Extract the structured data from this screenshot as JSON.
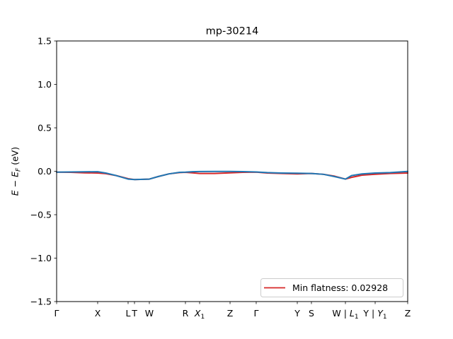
{
  "chart_data": {
    "type": "line",
    "title": "mp-30214",
    "xlabel": "",
    "ylabel": "E − E_F (eV)",
    "ylim": [
      -1.5,
      1.5
    ],
    "yticks": [
      1.5,
      1.0,
      0.5,
      0.0,
      -0.5,
      -1.0,
      -1.5
    ],
    "ytick_labels": [
      "1.5",
      "1.0",
      "0.5",
      "0.0",
      "−0.5",
      "−1.0",
      "−1.5"
    ],
    "xlim": [
      0,
      1
    ],
    "grid": false,
    "legend_position": "lower-right",
    "legend": [
      {
        "label": "Min flatness: 0.02928",
        "color": "#d62728"
      }
    ],
    "kpoints": [
      {
        "label": "Γ",
        "pos": 0.0
      },
      {
        "label": "X",
        "pos": 0.1169
      },
      {
        "label": "L",
        "pos": 0.2036
      },
      {
        "label": "T",
        "pos": 0.2218
      },
      {
        "label": "W",
        "pos": 0.2641
      },
      {
        "label": "R",
        "pos": 0.3669
      },
      {
        "label": "X",
        "sub": "1",
        "pos": 0.4073
      },
      {
        "label": "Z",
        "pos": 0.494
      },
      {
        "label": "Γ",
        "pos": 0.5685
      },
      {
        "label": "Y",
        "pos": 0.6855
      },
      {
        "label": "S",
        "pos": 0.7258
      },
      {
        "label": "W | ",
        "label2": "L",
        "sub": "1",
        "pos": 0.8226
      },
      {
        "label": "Y | ",
        "label2": "Y",
        "sub": "1",
        "pos": 0.9073
      },
      {
        "label": "Z",
        "pos": 1.0
      }
    ],
    "series": [
      {
        "color": "#d62728",
        "x": [
          0.0,
          0.04,
          0.08,
          0.1169,
          0.14,
          0.17,
          0.2036,
          0.2218,
          0.2641,
          0.29,
          0.32,
          0.35,
          0.3669,
          0.3869,
          0.4073,
          0.45,
          0.494,
          0.53,
          0.5685,
          0.6,
          0.64,
          0.6855,
          0.7258,
          0.76,
          0.79,
          0.8226,
          0.84,
          0.87,
          0.9073,
          0.95,
          1.0
        ],
        "y": [
          -0.01,
          -0.012,
          -0.018,
          -0.02,
          -0.028,
          -0.05,
          -0.085,
          -0.095,
          -0.09,
          -0.06,
          -0.03,
          -0.015,
          -0.012,
          -0.018,
          -0.025,
          -0.025,
          -0.018,
          -0.012,
          -0.01,
          -0.02,
          -0.025,
          -0.03,
          -0.025,
          -0.035,
          -0.055,
          -0.09,
          -0.07,
          -0.045,
          -0.035,
          -0.025,
          -0.02
        ]
      },
      {
        "color": "#1f77b4",
        "x": [
          0.0,
          0.04,
          0.08,
          0.1169,
          0.14,
          0.17,
          0.2036,
          0.2218,
          0.2641,
          0.29,
          0.32,
          0.35,
          0.3669,
          0.3869,
          0.4073,
          0.45,
          0.494,
          0.53,
          0.5685,
          0.6,
          0.64,
          0.6855,
          0.7258,
          0.76,
          0.79,
          0.8226,
          0.84,
          0.87,
          0.9073,
          0.95,
          1.0
        ],
        "y": [
          -0.01,
          -0.008,
          -0.006,
          -0.005,
          -0.02,
          -0.05,
          -0.09,
          -0.095,
          -0.09,
          -0.06,
          -0.03,
          -0.012,
          -0.01,
          -0.005,
          -0.003,
          -0.002,
          -0.002,
          -0.004,
          -0.008,
          -0.015,
          -0.02,
          -0.022,
          -0.025,
          -0.035,
          -0.06,
          -0.09,
          -0.05,
          -0.03,
          -0.02,
          -0.015,
          -0.002
        ]
      }
    ]
  }
}
